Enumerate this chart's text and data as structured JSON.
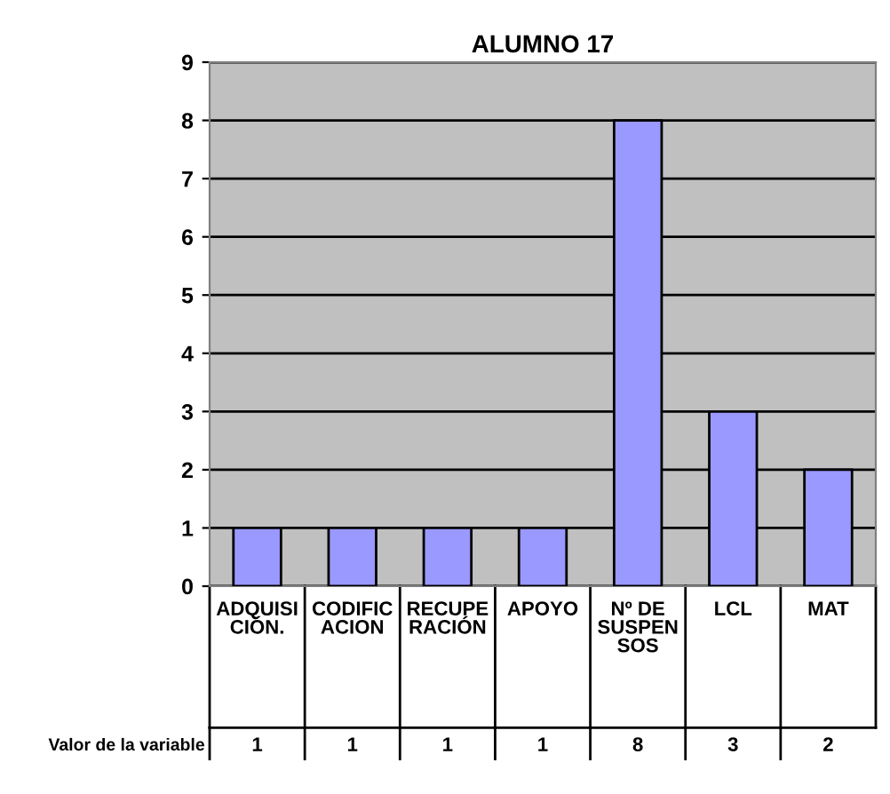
{
  "chart_data": {
    "type": "bar",
    "title": "ALUMNO 17",
    "categories": [
      "ADQUISI\nCIÓN.",
      "CODIFIC\nACION",
      "RECUPE\nRACIÓN",
      "APOYO",
      "Nº DE\nSUSPEN\nSOS",
      "LCL",
      "MAT"
    ],
    "values": [
      1,
      1,
      1,
      1,
      8,
      3,
      2
    ],
    "color": "#9999ff",
    "ylim": [
      0,
      9
    ],
    "yticks": [
      0,
      1,
      2,
      3,
      4,
      5,
      6,
      7,
      8,
      9
    ],
    "grid": "y",
    "data_labels": true,
    "annotations": [
      "Valor de la variable"
    ]
  }
}
